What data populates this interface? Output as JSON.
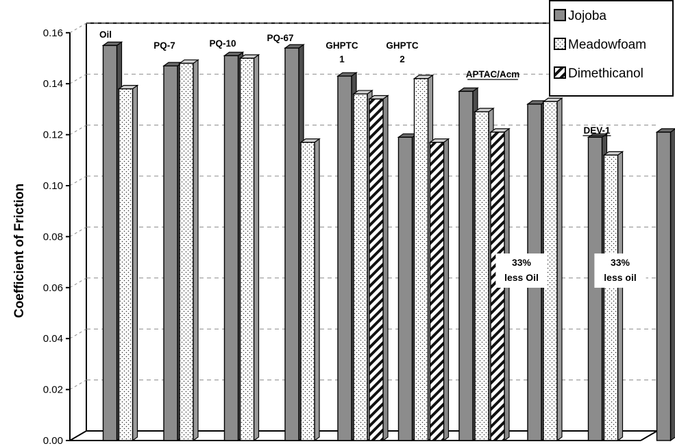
{
  "chart_data": {
    "type": "bar",
    "ylabel": "Coefficient of Friction",
    "ylim": [
      0,
      0.16
    ],
    "yticks": [
      "0.00",
      "0.02",
      "0.04",
      "0.06",
      "0.08",
      "0.10",
      "0.12",
      "0.14",
      "0.16"
    ],
    "grid": "horizontal dashed",
    "legend_position": "top-right",
    "colors": {
      "Jojoba": "#8c8c8c",
      "Meadowfoam": "#ffffff",
      "Dimethicanol": "#ffffff"
    },
    "categories": [
      {
        "label": "Oil",
        "underline": false
      },
      {
        "label": "PQ-7",
        "underline": false
      },
      {
        "label": "PQ-10",
        "underline": false
      },
      {
        "label": "PQ-67",
        "underline": false
      },
      {
        "label": "GHPTC\n1",
        "underline": false
      },
      {
        "label": "GHPTC\n2",
        "underline": false
      },
      {
        "label": "APTAC/Acm",
        "underline": true
      },
      {
        "label": "",
        "underline": false
      },
      {
        "label": "DEV-1",
        "underline": true
      },
      {
        "label": "",
        "underline": false
      }
    ],
    "series": [
      {
        "name": "Jojoba",
        "pattern": "solid-gray",
        "values": [
          0.155,
          0.147,
          0.151,
          0.154,
          0.143,
          0.119,
          0.137,
          0.132,
          0.119,
          0.121
        ]
      },
      {
        "name": "Meadowfoam",
        "pattern": "dots",
        "values": [
          0.138,
          0.148,
          0.15,
          0.117,
          0.136,
          0.142,
          0.129,
          0.133,
          0.112,
          null
        ]
      },
      {
        "name": "Dimethicanol",
        "pattern": "diagonal-stripes",
        "values": [
          null,
          null,
          null,
          null,
          0.134,
          0.117,
          0.121,
          null,
          null,
          null
        ]
      }
    ],
    "annotations": [
      {
        "text": "33%\nless Oil",
        "category_index": 7
      },
      {
        "text": "33%\nless oil",
        "category_index": 9
      }
    ]
  }
}
